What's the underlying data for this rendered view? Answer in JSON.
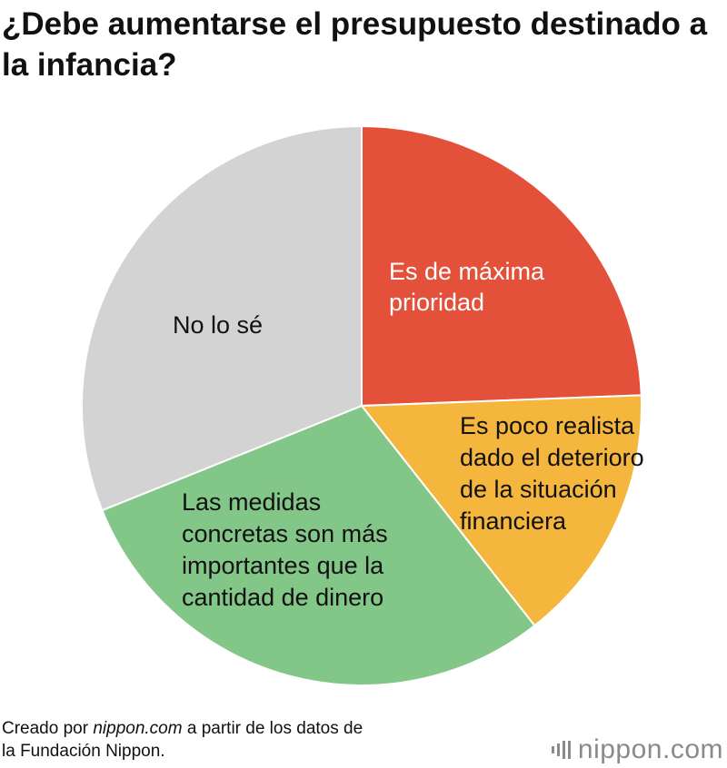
{
  "title": "¿Debe aumentarse el presupuesto destinado a la infancia?",
  "chart_data": {
    "type": "pie",
    "title": "¿Debe aumentarse el presupuesto destinado a la infancia?",
    "start_angle_deg": 0,
    "direction": "clockwise",
    "slices": [
      {
        "label": "Es de máxima prioridad",
        "label_lines": [
          "Es de máxima",
          "prioridad"
        ],
        "value": 24.4,
        "color": "#E4513A",
        "text_color": "#FFFFFF"
      },
      {
        "label": "Es poco realista dado el deterioro de la situación financiera",
        "label_lines": [
          "Es poco realista",
          "dado el deterioro",
          "de la situación",
          "financiera"
        ],
        "value": 15.0,
        "color": "#F5B63E",
        "text_color": "#111111"
      },
      {
        "label": "Las medidas concretas son más importantes que la cantidad de dinero",
        "label_lines": [
          "Las medidas",
          "concretas son más",
          "importantes que la",
          "cantidad de dinero"
        ],
        "value": 29.5,
        "color": "#82C688",
        "text_color": "#111111"
      },
      {
        "label": "No lo sé",
        "label_lines": [
          "No lo sé"
        ],
        "value": 31.1,
        "color": "#D3D3D3",
        "text_color": "#111111"
      }
    ]
  },
  "credit": {
    "prefix": "Creado por ",
    "site": "nippon.com",
    "middle": " a partir de los datos de",
    "line2": "la Fundación Nippon."
  },
  "logo": {
    "text": "nippon.com"
  }
}
